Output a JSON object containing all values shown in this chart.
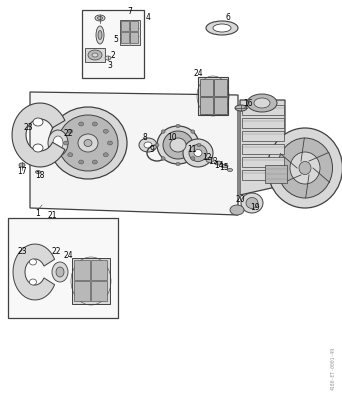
{
  "bg_color": "#ffffff",
  "watermark": "4180-ET-0001-49",
  "gray_line": "#404040",
  "light_gray": "#888888",
  "fill_light": "#d8d8d8",
  "fill_mid": "#b8b8b8",
  "fill_dark": "#909090"
}
